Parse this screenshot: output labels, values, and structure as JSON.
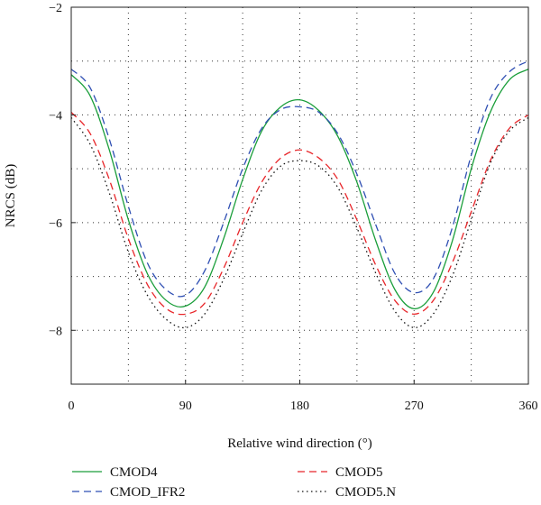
{
  "chart_data": {
    "type": "line",
    "xlabel": "Relative wind direction (°)",
    "ylabel": "NRCS (dB)",
    "xlim": [
      0,
      360
    ],
    "ylim": [
      -9,
      -2
    ],
    "x_ticks": [
      0,
      90,
      180,
      270,
      360
    ],
    "y_ticks": [
      -2,
      -4,
      -6,
      -8
    ],
    "grid": true,
    "grid_x": [
      0,
      45,
      90,
      135,
      180,
      225,
      270,
      315,
      360
    ],
    "grid_y": [
      -2,
      -3,
      -4,
      -5,
      -6,
      -7,
      -8
    ],
    "legend_position": "bottom",
    "x": [
      0,
      15,
      30,
      45,
      60,
      75,
      90,
      105,
      120,
      135,
      150,
      165,
      180,
      195,
      210,
      225,
      240,
      255,
      270,
      285,
      300,
      315,
      330,
      345,
      360
    ],
    "series": [
      {
        "name": "CMOD4",
        "color": "#1a9e3a",
        "dash": "solid",
        "values": [
          -3.25,
          -3.65,
          -4.65,
          -5.95,
          -6.95,
          -7.45,
          -7.55,
          -7.2,
          -6.3,
          -5.2,
          -4.3,
          -3.85,
          -3.72,
          -3.92,
          -4.4,
          -5.25,
          -6.35,
          -7.25,
          -7.6,
          -7.3,
          -6.35,
          -5.0,
          -3.95,
          -3.35,
          -3.15
        ]
      },
      {
        "name": "CMOD5",
        "color": "#e8262a",
        "dash": "8,5",
        "values": [
          -3.95,
          -4.35,
          -5.2,
          -6.3,
          -7.15,
          -7.6,
          -7.7,
          -7.5,
          -6.85,
          -6.0,
          -5.25,
          -4.8,
          -4.65,
          -4.8,
          -5.2,
          -5.95,
          -6.8,
          -7.45,
          -7.7,
          -7.45,
          -6.75,
          -5.8,
          -4.85,
          -4.25,
          -4.0
        ]
      },
      {
        "name": "CMOD_IFR2",
        "color": "#2f4fb3",
        "dash": "8,5",
        "values": [
          -3.15,
          -3.5,
          -4.45,
          -5.7,
          -6.75,
          -7.25,
          -7.35,
          -6.9,
          -6.0,
          -5.0,
          -4.25,
          -3.9,
          -3.85,
          -3.95,
          -4.35,
          -5.1,
          -6.05,
          -6.95,
          -7.3,
          -7.05,
          -6.1,
          -4.75,
          -3.7,
          -3.2,
          -3.0
        ]
      },
      {
        "name": "CMOD5.N",
        "color": "#111111",
        "dash": "1.5,3.5",
        "values": [
          -4.05,
          -4.55,
          -5.45,
          -6.55,
          -7.35,
          -7.8,
          -7.95,
          -7.7,
          -7.05,
          -6.2,
          -5.4,
          -4.95,
          -4.85,
          -4.95,
          -5.35,
          -6.1,
          -6.95,
          -7.65,
          -7.95,
          -7.7,
          -7.0,
          -5.95,
          -4.9,
          -4.3,
          -4.05
        ]
      }
    ],
    "legend_order": [
      "CMOD4",
      "CMOD5",
      "CMOD_IFR2",
      "CMOD5.N"
    ]
  }
}
